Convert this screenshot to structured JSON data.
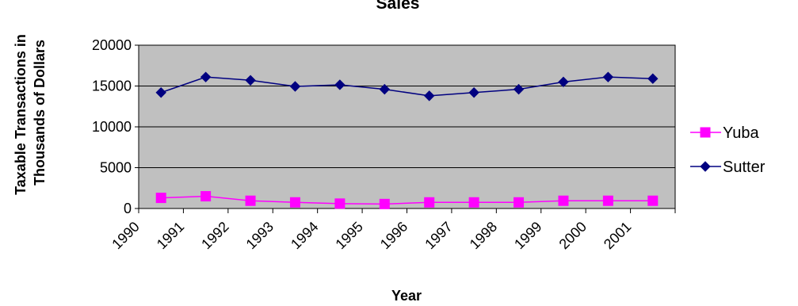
{
  "chart_data": {
    "type": "line",
    "title": "Sales",
    "xlabel": "Year",
    "ylabel": [
      "Taxable Transactions in",
      "Thousands of Dollars"
    ],
    "categories": [
      "1990",
      "1991",
      "1992",
      "1993",
      "1994",
      "1995",
      "1996",
      "1997",
      "1998",
      "1999",
      "2000",
      "2001"
    ],
    "ylim": [
      0,
      20000
    ],
    "yticks": [
      "0",
      "5000",
      "10000",
      "15000",
      "20000"
    ],
    "grid": true,
    "legend_position": "right",
    "series": [
      {
        "name": "Yuba",
        "color": "#ff00ff",
        "marker": "square",
        "values": [
          1300,
          1500,
          950,
          750,
          600,
          550,
          750,
          750,
          750,
          950,
          950,
          950
        ]
      },
      {
        "name": "Sutter",
        "color": "#000080",
        "marker": "diamond",
        "values": [
          14200,
          16100,
          15700,
          14950,
          15150,
          14600,
          13800,
          14200,
          14600,
          15500,
          16100,
          15900
        ]
      }
    ],
    "plot_background": "#c0c0c0"
  }
}
